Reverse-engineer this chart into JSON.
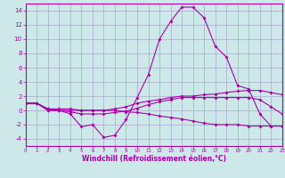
{
  "xlabel": "Windchill (Refroidissement éolien,°C)",
  "background_color": "#cce8e8",
  "grid_color": "#aaaacc",
  "line_color": "#aa00aa",
  "x": [
    0,
    1,
    2,
    3,
    4,
    5,
    6,
    7,
    8,
    9,
    10,
    11,
    12,
    13,
    14,
    15,
    16,
    17,
    18,
    19,
    20,
    21,
    22,
    23
  ],
  "line1": [
    1.0,
    1.0,
    0.0,
    0.0,
    -0.5,
    -2.3,
    -2.0,
    -3.8,
    -3.5,
    -1.3,
    1.8,
    5.0,
    10.0,
    12.5,
    14.5,
    14.5,
    13.0,
    9.0,
    7.5,
    3.5,
    3.0,
    -0.5,
    -2.2,
    -2.2
  ],
  "line2": [
    1.0,
    1.0,
    0.2,
    0.2,
    0.2,
    0.0,
    0.0,
    0.0,
    0.2,
    0.5,
    1.0,
    1.3,
    1.5,
    1.8,
    2.0,
    2.0,
    2.2,
    2.3,
    2.5,
    2.7,
    2.8,
    2.8,
    2.5,
    2.2
  ],
  "line3": [
    1.0,
    1.0,
    0.2,
    0.0,
    -0.2,
    -0.5,
    -0.5,
    -0.5,
    -0.3,
    -0.1,
    0.3,
    0.8,
    1.2,
    1.5,
    1.8,
    1.8,
    1.8,
    1.8,
    1.8,
    1.8,
    1.8,
    1.5,
    0.5,
    -0.5
  ],
  "line4": [
    1.0,
    1.0,
    0.0,
    0.0,
    0.0,
    0.0,
    0.0,
    0.0,
    0.0,
    -0.2,
    -0.3,
    -0.5,
    -0.8,
    -1.0,
    -1.2,
    -1.5,
    -1.8,
    -2.0,
    -2.0,
    -2.0,
    -2.2,
    -2.2,
    -2.2,
    -2.2
  ],
  "ylim": [
    -5,
    15
  ],
  "xlim": [
    0,
    23
  ],
  "yticks": [
    -4,
    -2,
    0,
    2,
    4,
    6,
    8,
    10,
    12,
    14
  ],
  "xticks": [
    0,
    1,
    2,
    3,
    4,
    5,
    6,
    7,
    8,
    9,
    10,
    11,
    12,
    13,
    14,
    15,
    16,
    17,
    18,
    19,
    20,
    21,
    22,
    23
  ]
}
